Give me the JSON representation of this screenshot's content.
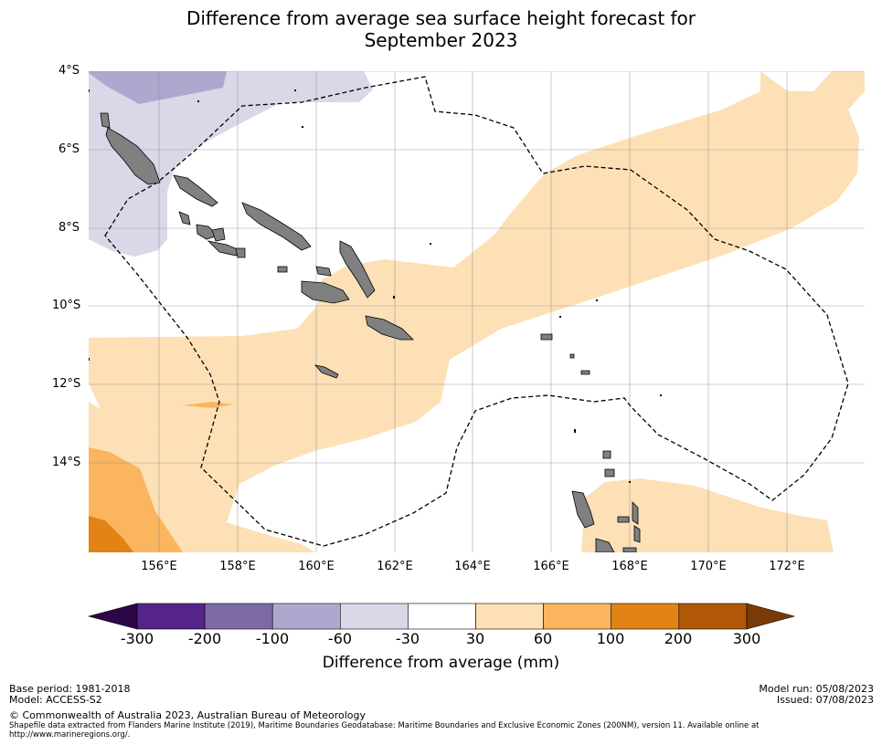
{
  "title": {
    "line1": "Difference from average sea surface height forecast for",
    "line2": "September 2023"
  },
  "map": {
    "lat_labels": [
      "4°S",
      "6°S",
      "8°S",
      "10°S",
      "12°S",
      "14°S"
    ],
    "lon_labels": [
      "156°E",
      "158°E",
      "160°E",
      "162°E",
      "164°E",
      "166°E",
      "168°E",
      "170°E",
      "172°E"
    ],
    "colors": {
      "land": "#808080",
      "band_30_60": "#fde0b6",
      "band_60_100": "#fbb55f",
      "band_100_200": "#e28415",
      "band_m30_m60": "#d8d8e9",
      "band_m60_m100": "#aea8cf",
      "boundary": "#000000"
    }
  },
  "colorbar": {
    "labels": [
      "-300",
      "-200",
      "-100",
      "-60",
      "-30",
      "30",
      "60",
      "100",
      "200",
      "300"
    ],
    "colors": [
      "#56238a",
      "#7d6ba8",
      "#aea8cf",
      "#d8d8e9",
      "#ffffff",
      "#fde0b6",
      "#fbb55f",
      "#e28415",
      "#b15808"
    ],
    "under_color": "#2d0648",
    "over_color": "#7a3a06",
    "title": "Difference from average (mm)"
  },
  "footer": {
    "base_period": "Base period: 1981-2018",
    "model": "Model: ACCESS-S2",
    "copyright": "© Commonwealth of Australia 2023, Australian Bureau of Meteorology",
    "shapefile_line1": "Shapefile data extracted from Flanders Marine Institute (2019), Maritime Boundaries Geodatabase: Maritime Boundaries and Exclusive Economic Zones (200NM), version 11. Available online at",
    "shapefile_line2": "http://www.marineregions.org/.",
    "model_run": "Model run: 05/08/2023",
    "issued": "Issued: 07/08/2023"
  }
}
